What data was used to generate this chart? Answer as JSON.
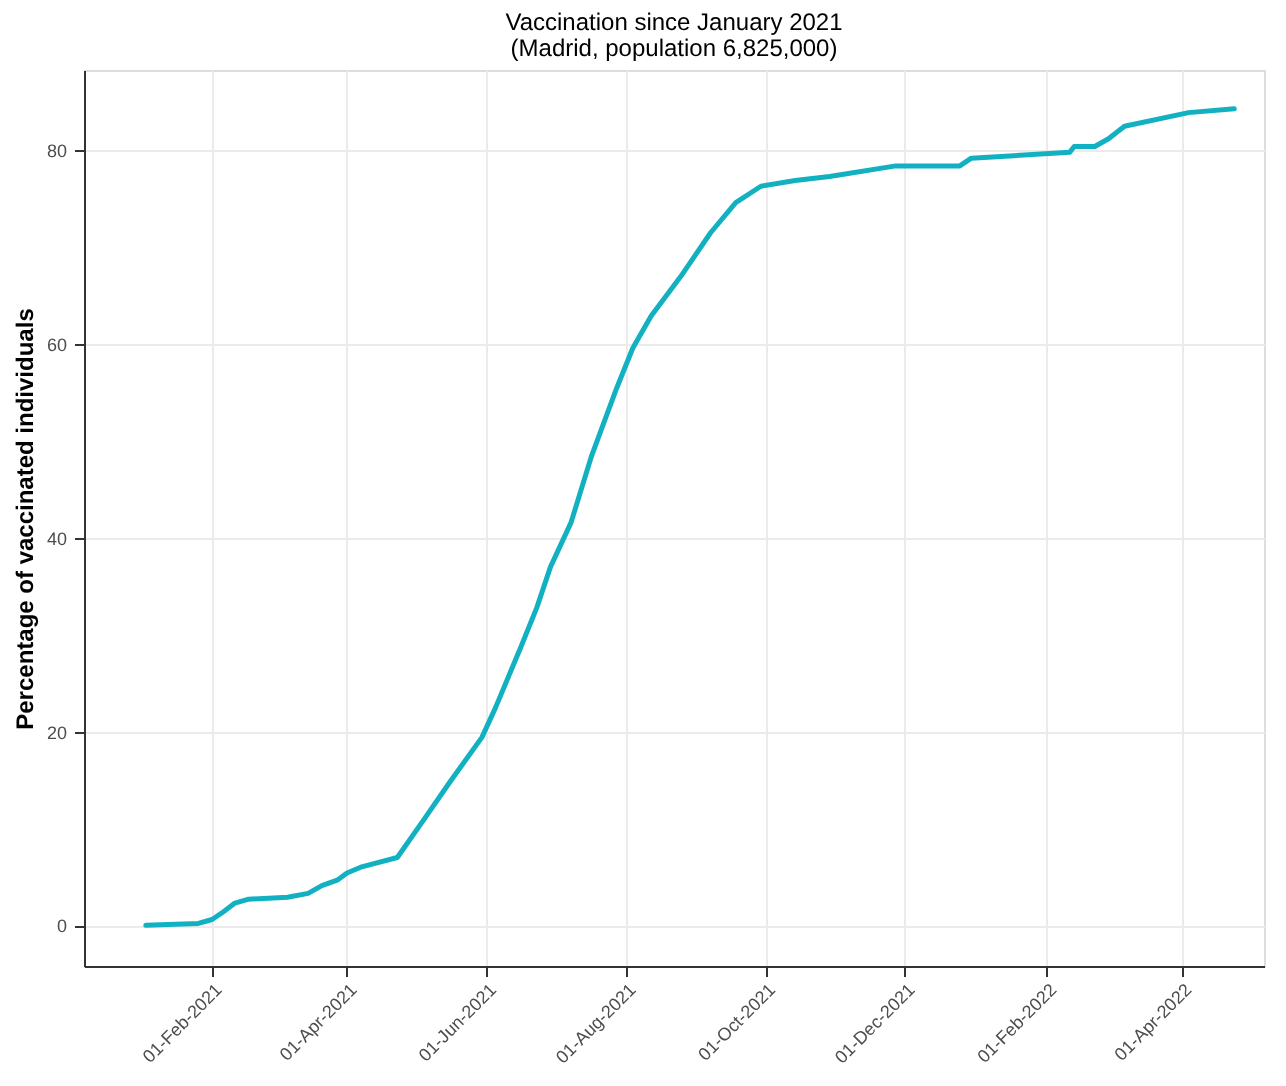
{
  "chart_data": {
    "type": "line",
    "title": "Vaccination since January 2021",
    "subtitle": "(Madrid, population 6,825,000)",
    "ylabel": "Percentage of vaccinated individuals",
    "x": [
      "2021-01-03",
      "2021-01-26",
      "2021-02-01",
      "2021-02-06",
      "2021-02-11",
      "2021-02-17",
      "2021-03-06",
      "2021-03-15",
      "2021-03-21",
      "2021-03-28",
      "2021-04-01",
      "2021-04-07",
      "2021-04-23",
      "2021-05-04",
      "2021-05-16",
      "2021-05-30",
      "2021-06-05",
      "2021-06-16",
      "2021-06-23",
      "2021-06-29",
      "2021-07-08",
      "2021-07-17",
      "2021-07-28",
      "2021-08-04",
      "2021-08-12",
      "2021-08-25",
      "2021-09-07",
      "2021-09-18",
      "2021-09-29",
      "2021-10-14",
      "2021-10-29",
      "2021-11-27",
      "2021-12-25",
      "2021-12-30",
      "2022-02-11",
      "2022-02-13",
      "2022-02-22",
      "2022-02-28",
      "2022-03-07",
      "2022-04-04",
      "2022-04-24"
    ],
    "series": [
      {
        "color": "#12b1c1",
        "values": [
          0,
          0.2,
          0.6,
          1.4,
          2.3,
          2.7,
          2.9,
          3.3,
          4.1,
          4.7,
          5.4,
          6.0,
          7.0,
          10.7,
          14.8,
          19.4,
          22.5,
          28.7,
          32.8,
          37.0,
          41.6,
          48.5,
          55.5,
          59.6,
          62.9,
          67.0,
          71.5,
          74.6,
          76.3,
          76.9,
          77.3,
          78.4,
          78.4,
          79.2,
          79.8,
          80.4,
          80.4,
          81.2,
          82.5,
          83.9,
          84.3
        ]
      }
    ],
    "xlim": [
      "2020-12-07",
      "2022-05-07"
    ],
    "xticks": [
      {
        "value": "2021-02-01",
        "label": "01-Feb-2021"
      },
      {
        "value": "2021-04-01",
        "label": "01-Apr-2021"
      },
      {
        "value": "2021-06-01",
        "label": "01-Jun-2021"
      },
      {
        "value": "2021-08-01",
        "label": "01-Aug-2021"
      },
      {
        "value": "2021-10-01",
        "label": "01-Oct-2021"
      },
      {
        "value": "2021-12-01",
        "label": "01-Dec-2021"
      },
      {
        "value": "2022-02-01",
        "label": "01-Feb-2022"
      },
      {
        "value": "2022-04-01",
        "label": "01-Apr-2022"
      }
    ],
    "ylim": [
      -4.2,
      88.3
    ],
    "yticks": [
      0,
      20,
      40,
      60,
      80
    ],
    "grid": true,
    "legend": false,
    "marker": "none",
    "line_style": "solid"
  }
}
